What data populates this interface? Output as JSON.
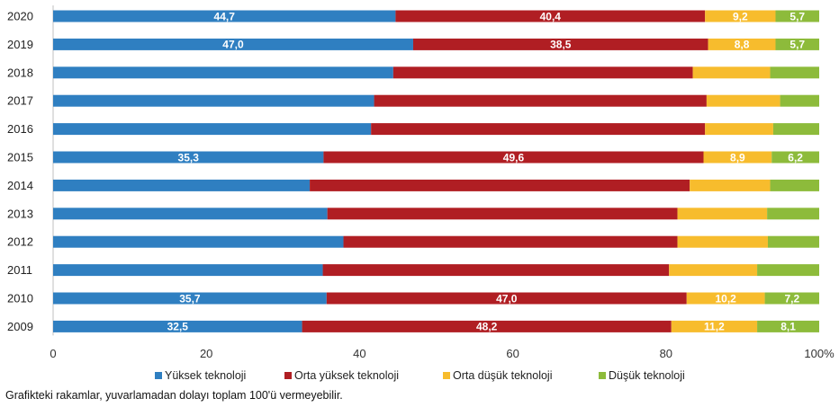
{
  "chart_data": {
    "type": "bar",
    "orientation": "horizontal",
    "stacked": true,
    "categories": [
      "2020",
      "2019",
      "2018",
      "2017",
      "2016",
      "2015",
      "2014",
      "2013",
      "2012",
      "2011",
      "2010",
      "2009"
    ],
    "series": [
      {
        "name": "Yüksek teknoloji",
        "color": "#2f7fc1",
        "values": [
          44.7,
          47.0,
          44.4,
          41.9,
          41.5,
          35.3,
          33.5,
          35.8,
          37.9,
          35.2,
          35.7,
          32.5
        ],
        "labels": [
          "44,7",
          "47,0",
          "",
          "",
          "",
          "35,3",
          "",
          "",
          "",
          "",
          "35,7",
          "32,5"
        ]
      },
      {
        "name": "Orta yüksek teknoloji",
        "color": "#b01e23",
        "values": [
          40.4,
          38.5,
          39.1,
          43.4,
          43.6,
          49.6,
          49.6,
          45.7,
          43.6,
          45.2,
          47.0,
          48.2
        ],
        "labels": [
          "40,4",
          "38,5",
          "",
          "",
          "",
          "49,6",
          "",
          "",
          "",
          "",
          "47,0",
          "48,2"
        ]
      },
      {
        "name": "Orta düşük teknoloji",
        "color": "#f7bc2d",
        "values": [
          9.2,
          8.8,
          10.1,
          9.6,
          8.9,
          8.9,
          10.5,
          11.7,
          11.8,
          11.5,
          10.2,
          11.2
        ],
        "labels": [
          "9,2",
          "8,8",
          "",
          "",
          "",
          "8,9",
          "",
          "",
          "",
          "",
          "10,2",
          "11,2"
        ]
      },
      {
        "name": "Düşük teknoloji",
        "color": "#8dbb3b",
        "values": [
          5.7,
          5.7,
          6.4,
          5.1,
          6.0,
          6.2,
          6.4,
          6.8,
          6.7,
          8.1,
          7.2,
          8.1
        ],
        "labels": [
          "5,7",
          "5,7",
          "",
          "",
          "",
          "6,2",
          "",
          "",
          "",
          "",
          "7,2",
          "8,1"
        ]
      }
    ],
    "xlim": [
      0,
      100
    ],
    "xticks": [
      "0",
      "20",
      "40",
      "60",
      "80",
      "100%"
    ],
    "xtick_values": [
      0,
      20,
      40,
      60,
      80,
      100
    ],
    "legend_position": "bottom",
    "grid": false
  },
  "footnote": "Grafikteki rakamlar, yuvarlamadan dolayı toplam 100'ü vermeyebilir."
}
